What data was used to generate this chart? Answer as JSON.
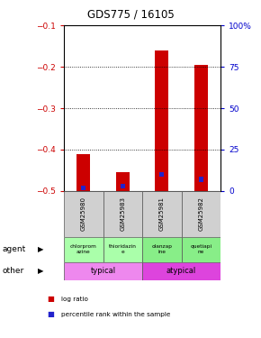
{
  "title": "GDS775 / 16105",
  "samples": [
    "GSM25980",
    "GSM25983",
    "GSM25981",
    "GSM25982"
  ],
  "log_ratios": [
    -0.41,
    -0.455,
    -0.16,
    -0.195
  ],
  "percentile_ranks": [
    2,
    3,
    10,
    7
  ],
  "ylim_left": [
    -0.5,
    -0.1
  ],
  "ylim_right": [
    0,
    100
  ],
  "yticks_left": [
    -0.5,
    -0.4,
    -0.3,
    -0.2,
    -0.1
  ],
  "yticks_right": [
    0,
    25,
    50,
    75,
    100
  ],
  "bar_color_red": "#cc0000",
  "bar_color_blue": "#2222cc",
  "agent_labels": [
    "chlorprom\nazine",
    "thioridazin\ne",
    "olanzap\nine",
    "quetiapi\nne"
  ],
  "agent_colors": [
    "#aaffaa",
    "#aaffaa",
    "#88ee88",
    "#88ee88"
  ],
  "other_label_typical": "typical",
  "other_label_atypical": "atypical",
  "other_color_typical": "#ee88ee",
  "other_color_atypical": "#dd44dd",
  "legend_red": "log ratio",
  "legend_blue": "percentile rank within the sample",
  "bar_width": 0.35,
  "percentile_bar_width": 0.12,
  "left_label_color": "#cc0000",
  "right_label_color": "#0000cc"
}
